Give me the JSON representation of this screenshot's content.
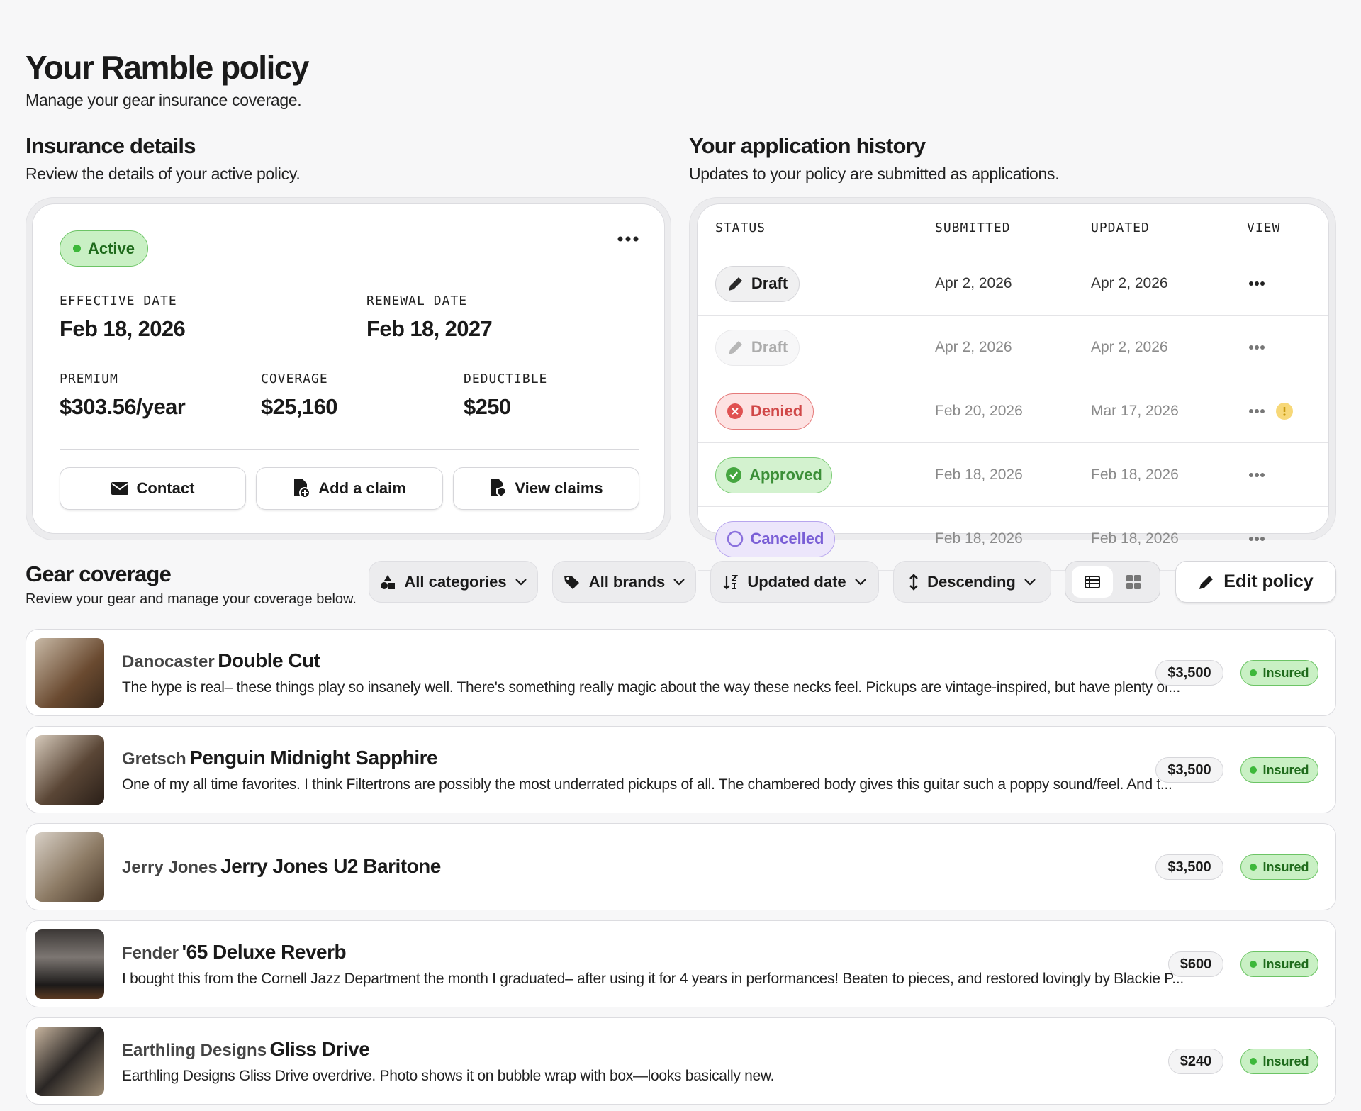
{
  "header": {
    "title": "Your Ramble policy",
    "subtitle": "Manage your gear insurance coverage."
  },
  "insurance": {
    "title": "Insurance details",
    "description": "Review the details of your active policy.",
    "status": "Active",
    "fields": [
      {
        "label": "EFFECTIVE DATE",
        "value": "Feb 18, 2026"
      },
      {
        "label": "RENEWAL DATE",
        "value": "Feb 18, 2027"
      },
      {
        "label": "PREMIUM",
        "value": "$303.56/year"
      },
      {
        "label": "COVERAGE",
        "value": "$25,160"
      },
      {
        "label": "DEDUCTIBLE",
        "value": "$250"
      }
    ],
    "actions": [
      "Contact",
      "Add a claim",
      "View claims"
    ]
  },
  "history": {
    "title": "Your application history",
    "description": "Updates to your policy are submitted as applications.",
    "columns": [
      "STATUS",
      "SUBMITTED",
      "UPDATED",
      "VIEW"
    ],
    "rows": [
      {
        "status": "Draft",
        "submitted": "Apr 2, 2026",
        "updated": "Apr 2, 2026"
      },
      {
        "status": "Draft",
        "submitted": "Apr 2, 2026",
        "updated": "Apr 2, 2026"
      },
      {
        "status": "Denied",
        "submitted": "Feb 20, 2026",
        "updated": "Mar 17, 2026"
      },
      {
        "status": "Approved",
        "submitted": "Feb 18, 2026",
        "updated": "Feb 18, 2026"
      },
      {
        "status": "Cancelled",
        "submitted": "Feb 18, 2026",
        "updated": "Feb 18, 2026"
      }
    ]
  },
  "gear": {
    "title": "Gear coverage",
    "description": "Review your gear and manage your coverage below.",
    "filters": [
      "All categories",
      "All brands",
      "Updated date",
      "Descending"
    ],
    "edit": "Edit policy",
    "items": [
      {
        "brand": "Danocaster",
        "model": "Double Cut",
        "description": "The hype is real– these things play so insanely well. There's something really magic about the way these necks feel. Pickups are vintage-inspired, but have plenty of...",
        "price": "$3,500",
        "status": "Insured"
      },
      {
        "brand": "Gretsch",
        "model": "Penguin Midnight Sapphire",
        "description": "One of my all time favorites. I think Filtertrons are possibly the most underrated pickups of all. The chambered body gives this guitar such a poppy sound/feel. And t...",
        "price": "$3,500",
        "status": "Insured"
      },
      {
        "brand": "Jerry Jones",
        "model": "Jerry Jones U2 Baritone",
        "description": null,
        "price": "$3,500",
        "status": "Insured"
      },
      {
        "brand": "Fender",
        "model": "'65 Deluxe Reverb",
        "description": "I bought this from the Cornell Jazz Department the month I graduated– after using it for 4 years in performances! Beaten to pieces, and restored lovingly by Blackie P...",
        "price": "$600",
        "status": "Insured"
      },
      {
        "brand": "Earthling Designs",
        "model": "Gliss Drive",
        "description": "Earthling Designs Gliss Drive overdrive. Photo shows it on bubble wrap with box—looks basically new.",
        "price": "$240",
        "status": "Insured"
      }
    ]
  }
}
